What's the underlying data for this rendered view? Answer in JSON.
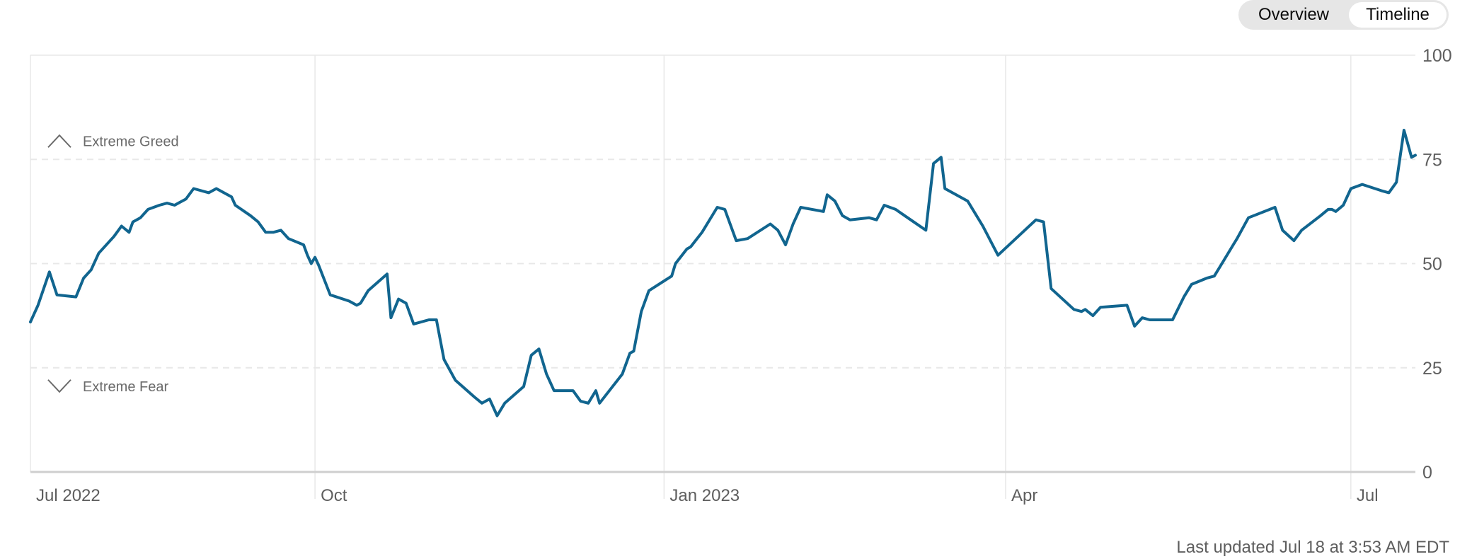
{
  "view_toggle": {
    "overview_label": "Overview",
    "timeline_label": "Timeline",
    "active": "Timeline"
  },
  "footer": {
    "last_updated": "Last updated Jul 18 at 3:53 AM EDT"
  },
  "colors": {
    "line": "#11658f",
    "grid": "#e8e8e8",
    "text": "#5e5e5e",
    "baseline": "#cfcfcf"
  },
  "chart_data": {
    "type": "line",
    "title": "",
    "xlabel": "",
    "ylabel": "",
    "ylim": [
      0,
      100
    ],
    "y_ticks": [
      0,
      25,
      50,
      75,
      100
    ],
    "x_range": [
      "2022-07-18",
      "2023-07-18"
    ],
    "x_ticks": [
      {
        "date": "2022-07-01",
        "label": "Jul 2022"
      },
      {
        "date": "2022-10-01",
        "label": "Oct"
      },
      {
        "date": "2023-01-01",
        "label": "Jan 2023"
      },
      {
        "date": "2023-04-01",
        "label": "Apr"
      },
      {
        "date": "2023-07-01",
        "label": "Jul"
      }
    ],
    "zones": [
      {
        "label": "Extreme Greed",
        "icon": "chevron-up-icon",
        "level": 75
      },
      {
        "label": "Extreme Fear",
        "icon": "chevron-down-icon",
        "level": 25
      }
    ],
    "grid": "dashed-horizontal",
    "series": [
      {
        "points": [
          [
            "2022-07-18",
            36
          ],
          [
            "2022-07-20",
            40
          ],
          [
            "2022-07-23",
            48
          ],
          [
            "2022-07-25",
            42.5
          ],
          [
            "2022-07-30",
            42
          ],
          [
            "2022-08-01",
            46.5
          ],
          [
            "2022-08-03",
            48.5
          ],
          [
            "2022-08-05",
            52.5
          ],
          [
            "2022-08-09",
            56.5
          ],
          [
            "2022-08-11",
            59
          ],
          [
            "2022-08-13",
            57.5
          ],
          [
            "2022-08-14",
            60
          ],
          [
            "2022-08-16",
            61
          ],
          [
            "2022-08-18",
            63
          ],
          [
            "2022-08-21",
            64
          ],
          [
            "2022-08-23",
            64.5
          ],
          [
            "2022-08-25",
            64
          ],
          [
            "2022-08-28",
            65.5
          ],
          [
            "2022-08-30",
            68
          ],
          [
            "2022-09-03",
            67
          ],
          [
            "2022-09-05",
            68
          ],
          [
            "2022-09-07",
            67
          ],
          [
            "2022-09-09",
            66
          ],
          [
            "2022-09-10",
            64
          ],
          [
            "2022-09-14",
            61.5
          ],
          [
            "2022-09-16",
            60
          ],
          [
            "2022-09-18",
            57.5
          ],
          [
            "2022-09-20",
            57.5
          ],
          [
            "2022-09-22",
            58
          ],
          [
            "2022-09-24",
            56
          ],
          [
            "2022-09-28",
            54.5
          ],
          [
            "2022-09-29",
            52
          ],
          [
            "2022-09-30",
            50
          ],
          [
            "2022-10-01",
            51.5
          ],
          [
            "2022-10-02",
            49.5
          ],
          [
            "2022-10-05",
            42.5
          ],
          [
            "2022-10-10",
            41
          ],
          [
            "2022-10-12",
            40
          ],
          [
            "2022-10-13",
            40.5
          ],
          [
            "2022-10-15",
            43.5
          ],
          [
            "2022-10-20",
            47.5
          ],
          [
            "2022-10-21",
            37
          ],
          [
            "2022-10-23",
            41.5
          ],
          [
            "2022-10-25",
            40.5
          ],
          [
            "2022-10-27",
            35.5
          ],
          [
            "2022-10-31",
            36.5
          ],
          [
            "2022-11-02",
            36.5
          ],
          [
            "2022-11-04",
            27
          ],
          [
            "2022-11-07",
            22
          ],
          [
            "2022-11-12",
            18
          ],
          [
            "2022-11-14",
            16.5
          ],
          [
            "2022-11-16",
            17.5
          ],
          [
            "2022-11-18",
            13.5
          ],
          [
            "2022-11-20",
            16.5
          ],
          [
            "2022-11-25",
            20.5
          ],
          [
            "2022-11-27",
            28
          ],
          [
            "2022-11-29",
            29.5
          ],
          [
            "2022-12-01",
            23.5
          ],
          [
            "2022-12-03",
            19.5
          ],
          [
            "2022-12-08",
            19.5
          ],
          [
            "2022-12-10",
            17
          ],
          [
            "2022-12-12",
            16.5
          ],
          [
            "2022-12-14",
            19.5
          ],
          [
            "2022-12-15",
            16.5
          ],
          [
            "2022-12-18",
            20
          ],
          [
            "2022-12-21",
            23.5
          ],
          [
            "2022-12-23",
            28.5
          ],
          [
            "2022-12-24",
            29
          ],
          [
            "2022-12-26",
            38.5
          ],
          [
            "2022-12-28",
            43.5
          ],
          [
            "2023-01-03",
            47
          ],
          [
            "2023-01-04",
            50
          ],
          [
            "2023-01-07",
            53.5
          ],
          [
            "2023-01-08",
            54
          ],
          [
            "2023-01-11",
            57.5
          ],
          [
            "2023-01-15",
            63.5
          ],
          [
            "2023-01-17",
            63
          ],
          [
            "2023-01-20",
            55.5
          ],
          [
            "2023-01-23",
            56
          ],
          [
            "2023-01-29",
            59.5
          ],
          [
            "2023-01-31",
            58
          ],
          [
            "2023-02-02",
            54.5
          ],
          [
            "2023-02-04",
            59.5
          ],
          [
            "2023-02-06",
            63.5
          ],
          [
            "2023-02-12",
            62.5
          ],
          [
            "2023-02-13",
            66.5
          ],
          [
            "2023-02-15",
            65
          ],
          [
            "2023-02-17",
            61.5
          ],
          [
            "2023-02-19",
            60.5
          ],
          [
            "2023-02-24",
            61
          ],
          [
            "2023-02-26",
            60.5
          ],
          [
            "2023-02-28",
            64
          ],
          [
            "2023-03-03",
            63
          ],
          [
            "2023-03-07",
            60.5
          ],
          [
            "2023-03-11",
            58
          ],
          [
            "2023-03-13",
            74
          ],
          [
            "2023-03-15",
            75.5
          ],
          [
            "2023-03-16",
            68
          ],
          [
            "2023-03-22",
            65
          ],
          [
            "2023-03-26",
            59
          ],
          [
            "2023-03-30",
            52
          ],
          [
            "2023-04-09",
            60.5
          ],
          [
            "2023-04-11",
            60
          ],
          [
            "2023-04-13",
            44
          ],
          [
            "2023-04-19",
            39
          ],
          [
            "2023-04-21",
            38.5
          ],
          [
            "2023-04-22",
            39
          ],
          [
            "2023-04-24",
            37.5
          ],
          [
            "2023-04-26",
            39.5
          ],
          [
            "2023-05-03",
            40
          ],
          [
            "2023-05-05",
            35
          ],
          [
            "2023-05-07",
            37
          ],
          [
            "2023-05-09",
            36.5
          ],
          [
            "2023-05-15",
            36.5
          ],
          [
            "2023-05-18",
            42
          ],
          [
            "2023-05-20",
            45
          ],
          [
            "2023-05-24",
            46.5
          ],
          [
            "2023-05-26",
            47
          ],
          [
            "2023-05-28",
            50
          ],
          [
            "2023-05-31",
            54.5
          ],
          [
            "2023-06-01",
            56
          ],
          [
            "2023-06-04",
            61
          ],
          [
            "2023-06-11",
            63.5
          ],
          [
            "2023-06-13",
            58
          ],
          [
            "2023-06-16",
            55.5
          ],
          [
            "2023-06-18",
            58
          ],
          [
            "2023-06-23",
            61.5
          ],
          [
            "2023-06-25",
            63
          ],
          [
            "2023-06-26",
            63
          ],
          [
            "2023-06-27",
            62.5
          ],
          [
            "2023-06-29",
            64
          ],
          [
            "2023-07-01",
            68
          ],
          [
            "2023-07-04",
            69
          ],
          [
            "2023-07-09",
            67.5
          ],
          [
            "2023-07-11",
            67
          ],
          [
            "2023-07-13",
            69.5
          ],
          [
            "2023-07-15",
            82
          ],
          [
            "2023-07-17",
            75.5
          ],
          [
            "2023-07-18",
            76
          ]
        ]
      }
    ]
  }
}
